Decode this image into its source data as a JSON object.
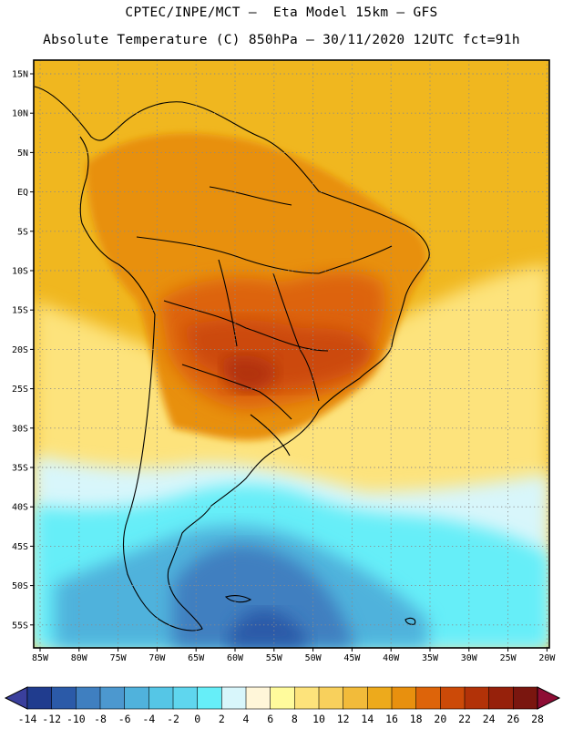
{
  "header": {
    "line1": "CPTEC/INPE/MCT –  Eta Model 15km – GFS",
    "line2": "Absolute Temperature (C) 850hPa – 30/11/2020 12UTC fct=91h"
  },
  "axes": {
    "lat_labels": [
      "15N",
      "10N",
      "5N",
      "EQ",
      "5S",
      "10S",
      "15S",
      "20S",
      "25S",
      "30S",
      "35S",
      "40S",
      "45S",
      "50S",
      "55S"
    ],
    "lon_labels": [
      "85W",
      "80W",
      "75W",
      "70W",
      "65W",
      "60W",
      "55W",
      "50W",
      "45W",
      "40W",
      "35W",
      "30W",
      "25W",
      "20W"
    ]
  },
  "colorbar": {
    "ticks": [
      "-14",
      "-12",
      "-10",
      "-8",
      "-6",
      "-4",
      "-2",
      "0",
      "2",
      "4",
      "6",
      "8",
      "10",
      "12",
      "14",
      "16",
      "18",
      "20",
      "22",
      "24",
      "26",
      "28"
    ],
    "colors": [
      "#203c8e",
      "#2b5aa8",
      "#3f7fc0",
      "#4c98cf",
      "#50b2dc",
      "#55c6e6",
      "#5fd6ee",
      "#66eef8",
      "#d8f6fb",
      "#fff6d9",
      "#fffb9c",
      "#fde37b",
      "#f8d05c",
      "#f2bb3a",
      "#edaa1c",
      "#e8900e",
      "#dd640a",
      "#cc4a08",
      "#b23208",
      "#96210b",
      "#7a160f"
    ],
    "low_color": "#3a3f9c",
    "high_color": "#8e0d35"
  },
  "map_colors": {
    "ocean_north": "#f0b71f",
    "ocean_mid": "#fde37b",
    "cold_1": "#d8f6fb",
    "cold_2": "#66eef8",
    "cold_3": "#50b2dc",
    "cold_4": "#3f7fc0",
    "cold_5": "#2b5aa8",
    "land_warm": "#e8900e",
    "land_hot": "#dd640a",
    "land_hotter": "#cc4a08",
    "land_hottest": "#b23208"
  }
}
